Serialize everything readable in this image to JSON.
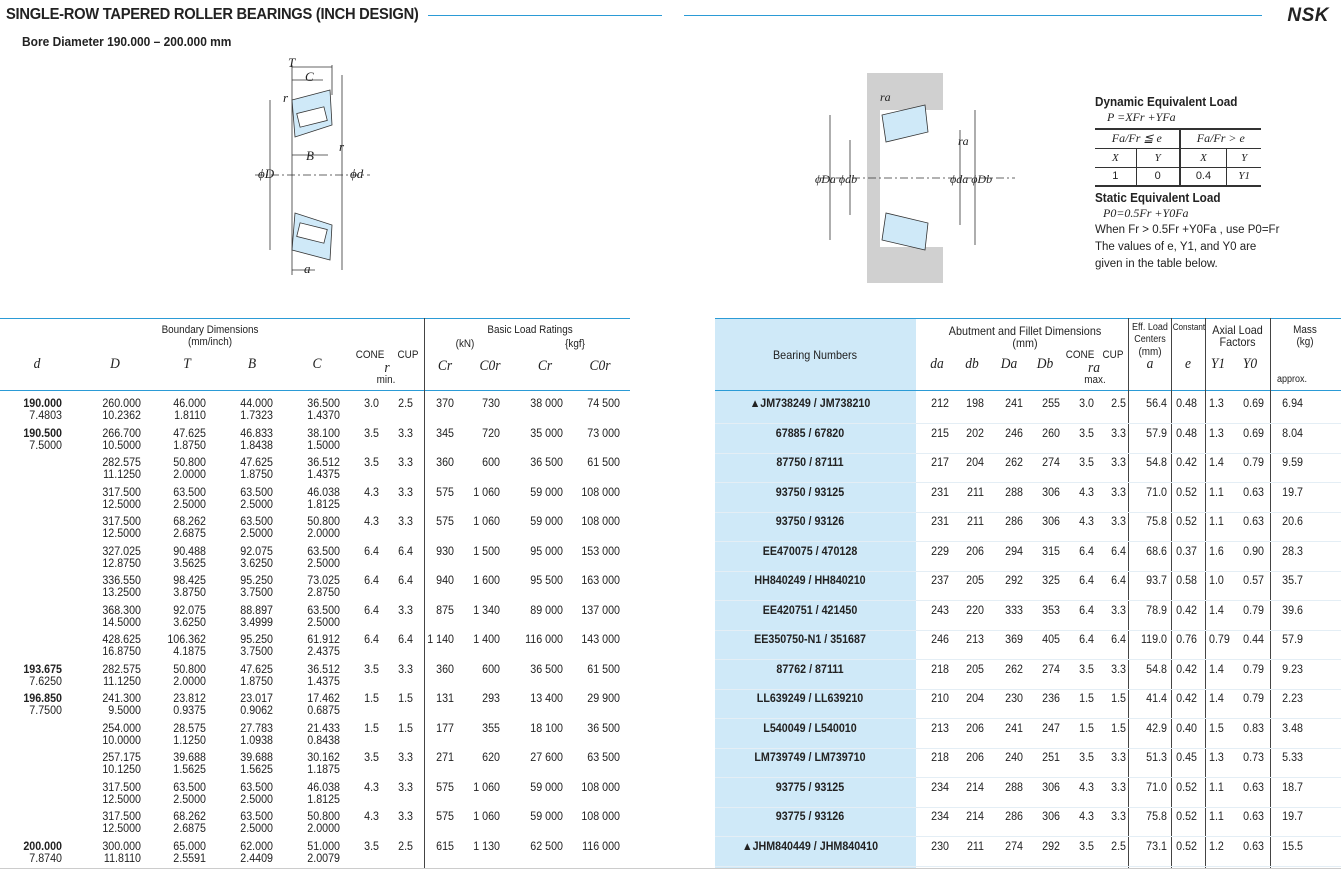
{
  "header": {
    "title": "SINGLE-ROW TAPERED ROLLER BEARINGS (INCH DESIGN)",
    "subtitle": "Bore Diameter   190.000 – 200.000 mm",
    "brand": "NSK",
    "accent": "#2b9bd6"
  },
  "diagram_left": {
    "labels": {
      "T": "T",
      "C": "C",
      "B": "B",
      "r1": "r",
      "r2": "r",
      "D": "ϕD",
      "d": "ϕd",
      "a": "a"
    }
  },
  "diagram_right": {
    "labels": {
      "ra1": "ra",
      "ra2": "ra",
      "DaDb_left": "ϕDa ϕdb",
      "daDb_right": "ϕda ϕDb"
    }
  },
  "equivalent_load": {
    "dynamic_title": "Dynamic Equivalent Load",
    "dynamic_formula": "P =XFr +YFa",
    "cond1": "Fa/Fr ≦ e",
    "cond2": "Fa/Fr > e",
    "cols": [
      "X",
      "Y",
      "X",
      "Y"
    ],
    "vals": [
      "1",
      "0",
      "0.4",
      "Y1"
    ],
    "static_title": "Static Equivalent Load",
    "static_formula": "P0=0.5Fr +Y0Fa",
    "static_note": "When Fr > 0.5Fr +Y0Fa , use P0=Fr",
    "note1": "The values of e, Y1, and Y0 are",
    "note2": "given in the table below."
  },
  "left_table": {
    "group_boundary": "Boundary Dimensions",
    "group_boundary_unit": "(mm/inch)",
    "group_load": "Basic Load Ratings",
    "unit_kn": "(kN)",
    "unit_kgf": "{kgf}",
    "cols": {
      "d": "d",
      "D": "D",
      "T": "T",
      "B": "B",
      "C": "C",
      "cone": "CONE",
      "cup": "CUP",
      "r": "r",
      "rmin": "min.",
      "Cr1": "Cr",
      "Cor1": "C0r",
      "Cr2": "Cr",
      "Cor2": "C0r"
    }
  },
  "right_table": {
    "bearing_numbers": "Bearing Numbers",
    "group_abutment": "Abutment and Fillet Dimensions",
    "group_abutment_unit": "(mm)",
    "cols": {
      "da": "da",
      "db": "db",
      "Da": "Da",
      "Db": "Db",
      "cone": "CONE",
      "cup": "CUP",
      "ra": "ra",
      "max": "max.",
      "eff1": "Eff. Load",
      "eff2": "Centers",
      "eff3": "(mm)",
      "a": "a",
      "constant": "Constant",
      "e": "e",
      "axial1": "Axial Load",
      "axial2": "Factors",
      "Y1": "Y1",
      "Y0": "Y0",
      "mass1": "Mass",
      "mass2": "(kg)",
      "approx": "approx."
    }
  },
  "rows_left": [
    [
      "190.000",
      "7.4803",
      "260.000",
      "10.2362",
      "46.000",
      "1.8110",
      "44.000",
      "1.7323",
      "36.500",
      "1.4370",
      "3.0",
      "2.5",
      "370",
      "730",
      "38 000",
      "74 500"
    ],
    [
      "190.500",
      "7.5000",
      "266.700",
      "10.5000",
      "47.625",
      "1.8750",
      "46.833",
      "1.8438",
      "38.100",
      "1.5000",
      "3.5",
      "3.3",
      "345",
      "720",
      "35 000",
      "73 000"
    ],
    [
      "",
      "",
      "282.575",
      "11.1250",
      "50.800",
      "2.0000",
      "47.625",
      "1.8750",
      "36.512",
      "1.4375",
      "3.5",
      "3.3",
      "360",
      "600",
      "36 500",
      "61 500"
    ],
    [
      "",
      "",
      "317.500",
      "12.5000",
      "63.500",
      "2.5000",
      "63.500",
      "2.5000",
      "46.038",
      "1.8125",
      "4.3",
      "3.3",
      "575",
      "1 060",
      "59 000",
      "108 000"
    ],
    [
      "",
      "",
      "317.500",
      "12.5000",
      "68.262",
      "2.6875",
      "63.500",
      "2.5000",
      "50.800",
      "2.0000",
      "4.3",
      "3.3",
      "575",
      "1 060",
      "59 000",
      "108 000"
    ],
    [
      "",
      "",
      "327.025",
      "12.8750",
      "90.488",
      "3.5625",
      "92.075",
      "3.6250",
      "63.500",
      "2.5000",
      "6.4",
      "6.4",
      "930",
      "1 500",
      "95 000",
      "153 000"
    ],
    [
      "",
      "",
      "336.550",
      "13.2500",
      "98.425",
      "3.8750",
      "95.250",
      "3.7500",
      "73.025",
      "2.8750",
      "6.4",
      "6.4",
      "940",
      "1 600",
      "95 500",
      "163 000"
    ],
    [
      "",
      "",
      "368.300",
      "14.5000",
      "92.075",
      "3.6250",
      "88.897",
      "3.4999",
      "63.500",
      "2.5000",
      "6.4",
      "3.3",
      "875",
      "1 340",
      "89 000",
      "137 000"
    ],
    [
      "",
      "",
      "428.625",
      "16.8750",
      "106.362",
      "4.1875",
      "95.250",
      "3.7500",
      "61.912",
      "2.4375",
      "6.4",
      "6.4",
      "1 140",
      "1 400",
      "116 000",
      "143 000"
    ],
    [
      "193.675",
      "7.6250",
      "282.575",
      "11.1250",
      "50.800",
      "2.0000",
      "47.625",
      "1.8750",
      "36.512",
      "1.4375",
      "3.5",
      "3.3",
      "360",
      "600",
      "36 500",
      "61 500"
    ],
    [
      "196.850",
      "7.7500",
      "241.300",
      "9.5000",
      "23.812",
      "0.9375",
      "23.017",
      "0.9062",
      "17.462",
      "0.6875",
      "1.5",
      "1.5",
      "131",
      "293",
      "13 400",
      "29 900"
    ],
    [
      "",
      "",
      "254.000",
      "10.0000",
      "28.575",
      "1.1250",
      "27.783",
      "1.0938",
      "21.433",
      "0.8438",
      "1.5",
      "1.5",
      "177",
      "355",
      "18 100",
      "36 500"
    ],
    [
      "",
      "",
      "257.175",
      "10.1250",
      "39.688",
      "1.5625",
      "39.688",
      "1.5625",
      "30.162",
      "1.1875",
      "3.5",
      "3.3",
      "271",
      "620",
      "27 600",
      "63 500"
    ],
    [
      "",
      "",
      "317.500",
      "12.5000",
      "63.500",
      "2.5000",
      "63.500",
      "2.5000",
      "46.038",
      "1.8125",
      "4.3",
      "3.3",
      "575",
      "1 060",
      "59 000",
      "108 000"
    ],
    [
      "",
      "",
      "317.500",
      "12.5000",
      "68.262",
      "2.6875",
      "63.500",
      "2.5000",
      "50.800",
      "2.0000",
      "4.3",
      "3.3",
      "575",
      "1 060",
      "59 000",
      "108 000"
    ],
    [
      "200.000",
      "7.8740",
      "300.000",
      "11.8110",
      "65.000",
      "2.5591",
      "62.000",
      "2.4409",
      "51.000",
      "2.0079",
      "3.5",
      "2.5",
      "615",
      "1 130",
      "62 500",
      "116 000"
    ]
  ],
  "rows_right": [
    [
      "▲JM738249 / JM738210",
      "212",
      "198",
      "241",
      "255",
      "3.0",
      "2.5",
      "56.4",
      "0.48",
      "1.3",
      "0.69",
      "6.94"
    ],
    [
      "67885 / 67820",
      "215",
      "202",
      "246",
      "260",
      "3.5",
      "3.3",
      "57.9",
      "0.48",
      "1.3",
      "0.69",
      "8.04"
    ],
    [
      "87750 / 87111",
      "217",
      "204",
      "262",
      "274",
      "3.5",
      "3.3",
      "54.8",
      "0.42",
      "1.4",
      "0.79",
      "9.59"
    ],
    [
      "93750 / 93125",
      "231",
      "211",
      "288",
      "306",
      "4.3",
      "3.3",
      "71.0",
      "0.52",
      "1.1",
      "0.63",
      "19.7"
    ],
    [
      "93750 / 93126",
      "231",
      "211",
      "286",
      "306",
      "4.3",
      "3.3",
      "75.8",
      "0.52",
      "1.1",
      "0.63",
      "20.6"
    ],
    [
      "EE470075 / 470128",
      "229",
      "206",
      "294",
      "315",
      "6.4",
      "6.4",
      "68.6",
      "0.37",
      "1.6",
      "0.90",
      "28.3"
    ],
    [
      "HH840249 / HH840210",
      "237",
      "205",
      "292",
      "325",
      "6.4",
      "6.4",
      "93.7",
      "0.58",
      "1.0",
      "0.57",
      "35.7"
    ],
    [
      "EE420751 / 421450",
      "243",
      "220",
      "333",
      "353",
      "6.4",
      "3.3",
      "78.9",
      "0.42",
      "1.4",
      "0.79",
      "39.6"
    ],
    [
      "EE350750-N1 / 351687",
      "246",
      "213",
      "369",
      "405",
      "6.4",
      "6.4",
      "119.0",
      "0.76",
      "0.79",
      "0.44",
      "57.9"
    ],
    [
      "87762 / 87111",
      "218",
      "205",
      "262",
      "274",
      "3.5",
      "3.3",
      "54.8",
      "0.42",
      "1.4",
      "0.79",
      "9.23"
    ],
    [
      "LL639249 / LL639210",
      "210",
      "204",
      "230",
      "236",
      "1.5",
      "1.5",
      "41.4",
      "0.42",
      "1.4",
      "0.79",
      "2.23"
    ],
    [
      "L540049 / L540010",
      "213",
      "206",
      "241",
      "247",
      "1.5",
      "1.5",
      "42.9",
      "0.40",
      "1.5",
      "0.83",
      "3.48"
    ],
    [
      "LM739749 / LM739710",
      "218",
      "206",
      "240",
      "251",
      "3.5",
      "3.3",
      "51.3",
      "0.45",
      "1.3",
      "0.73",
      "5.33"
    ],
    [
      "93775 / 93125",
      "234",
      "214",
      "288",
      "306",
      "4.3",
      "3.3",
      "71.0",
      "0.52",
      "1.1",
      "0.63",
      "18.7"
    ],
    [
      "93775 / 93126",
      "234",
      "214",
      "286",
      "306",
      "4.3",
      "3.3",
      "75.8",
      "0.52",
      "1.1",
      "0.63",
      "19.7"
    ],
    [
      "▲JHM840449 / JHM840410",
      "230",
      "211",
      "274",
      "292",
      "3.5",
      "2.5",
      "73.1",
      "0.52",
      "1.2",
      "0.63",
      "15.5"
    ]
  ]
}
